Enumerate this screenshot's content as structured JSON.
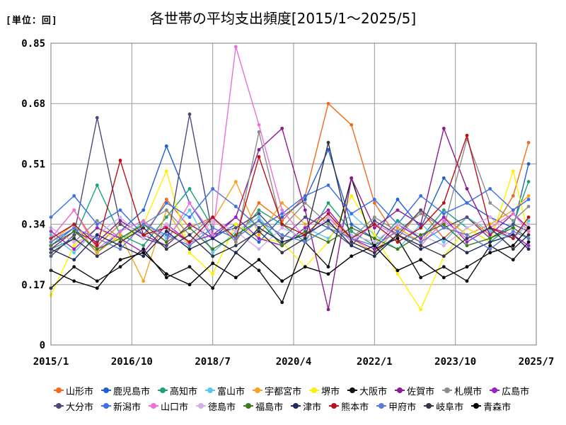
{
  "header": {
    "unit_label": "[単位：回]",
    "title": "各世帯の平均支出頻度[2015/1～2025/5]"
  },
  "chart_data": {
    "type": "line",
    "title": "各世帯の平均支出頻度[2015/1～2025/5]",
    "ylabel": "[単位：回]",
    "ylim": [
      0,
      0.85
    ],
    "yticks": [
      "0",
      "0.17",
      "0.34",
      "0.51",
      "0.68",
      "0.85"
    ],
    "xlim": [
      "2015-01",
      "2025-07"
    ],
    "xticks": [
      "2015/1",
      "2016/10",
      "2018/7",
      "2020/4",
      "2022/1",
      "2023/10",
      "2025/7"
    ],
    "grid": true,
    "legend": "bottom",
    "x": [
      "2015-01",
      "2015-07",
      "2016-01",
      "2016-07",
      "2017-01",
      "2017-07",
      "2018-01",
      "2018-07",
      "2019-01",
      "2019-07",
      "2020-01",
      "2020-07",
      "2021-01",
      "2021-07",
      "2022-01",
      "2022-07",
      "2023-01",
      "2023-07",
      "2024-01",
      "2024-07",
      "2025-01",
      "2025-05"
    ],
    "series": [
      {
        "name": "山形市",
        "color": "#f26a1b",
        "values": [
          0.3,
          0.38,
          0.28,
          0.34,
          0.3,
          0.41,
          0.33,
          0.36,
          0.29,
          0.4,
          0.35,
          0.42,
          0.68,
          0.62,
          0.4,
          0.3,
          0.38,
          0.3,
          0.36,
          0.31,
          0.42,
          0.57
        ]
      },
      {
        "name": "鹿児島市",
        "color": "#1f5fd6",
        "values": [
          0.28,
          0.33,
          0.26,
          0.32,
          0.38,
          0.56,
          0.4,
          0.3,
          0.34,
          0.29,
          0.36,
          0.41,
          0.55,
          0.34,
          0.3,
          0.41,
          0.33,
          0.47,
          0.4,
          0.36,
          0.33,
          0.51
        ]
      },
      {
        "name": "高知市",
        "color": "#1aa179",
        "values": [
          0.27,
          0.3,
          0.45,
          0.31,
          0.28,
          0.36,
          0.44,
          0.33,
          0.3,
          0.38,
          0.34,
          0.29,
          0.4,
          0.32,
          0.28,
          0.35,
          0.3,
          0.38,
          0.33,
          0.29,
          0.34,
          0.46
        ]
      },
      {
        "name": "富山市",
        "color": "#5bc8ee",
        "values": [
          0.31,
          0.26,
          0.33,
          0.29,
          0.35,
          0.3,
          0.38,
          0.26,
          0.32,
          0.36,
          0.28,
          0.33,
          0.3,
          0.37,
          0.31,
          0.27,
          0.34,
          0.29,
          0.36,
          0.32,
          0.3,
          0.35
        ]
      },
      {
        "name": "宇都宮市",
        "color": "#f5a41c",
        "values": [
          0.29,
          0.34,
          0.26,
          0.31,
          0.18,
          0.38,
          0.28,
          0.35,
          0.46,
          0.31,
          0.4,
          0.34,
          0.36,
          0.3,
          0.26,
          0.33,
          0.29,
          0.36,
          0.31,
          0.34,
          0.38,
          0.42
        ]
      },
      {
        "name": "堺市",
        "color": "#fff200",
        "values": [
          0.14,
          0.28,
          0.33,
          0.29,
          0.34,
          0.49,
          0.26,
          0.2,
          0.34,
          0.3,
          0.29,
          0.22,
          0.29,
          0.42,
          0.31,
          0.2,
          0.1,
          0.25,
          0.33,
          0.29,
          0.49,
          0.31
        ]
      },
      {
        "name": "大阪市",
        "color": "#111111",
        "values": [
          0.16,
          0.22,
          0.18,
          0.22,
          0.27,
          0.19,
          0.22,
          0.16,
          0.26,
          0.21,
          0.12,
          0.29,
          0.22,
          0.47,
          0.27,
          0.3,
          0.19,
          0.22,
          0.18,
          0.28,
          0.24,
          0.29
        ]
      },
      {
        "name": "佐賀市",
        "color": "#8d1a93",
        "values": [
          0.27,
          0.32,
          0.29,
          0.35,
          0.31,
          0.28,
          0.34,
          0.3,
          0.36,
          0.55,
          0.61,
          0.38,
          0.1,
          0.47,
          0.33,
          0.38,
          0.34,
          0.61,
          0.44,
          0.31,
          0.37,
          0.33
        ]
      },
      {
        "name": "札幌市",
        "color": "#8c8c8c",
        "values": [
          0.33,
          0.29,
          0.35,
          0.3,
          0.34,
          0.38,
          0.31,
          0.36,
          0.29,
          0.6,
          0.33,
          0.4,
          0.34,
          0.3,
          0.36,
          0.32,
          0.37,
          0.33,
          0.58,
          0.4,
          0.35,
          0.39
        ]
      },
      {
        "name": "広島市",
        "color": "#9a1fc7",
        "values": [
          0.32,
          0.27,
          0.33,
          0.3,
          0.26,
          0.34,
          0.29,
          0.31,
          0.36,
          0.3,
          0.28,
          0.33,
          0.38,
          0.3,
          0.27,
          0.34,
          0.3,
          0.36,
          0.29,
          0.33,
          0.31,
          0.28
        ]
      },
      {
        "name": "大分市",
        "color": "#4a4a7a",
        "values": [
          0.25,
          0.31,
          0.64,
          0.34,
          0.3,
          0.28,
          0.65,
          0.31,
          0.33,
          0.37,
          0.3,
          0.36,
          0.33,
          0.28,
          0.35,
          0.31,
          0.38,
          0.33,
          0.36,
          0.3,
          0.34,
          0.32
        ]
      },
      {
        "name": "新潟市",
        "color": "#3b6ee8",
        "values": [
          0.36,
          0.42,
          0.34,
          0.38,
          0.31,
          0.4,
          0.36,
          0.44,
          0.39,
          0.33,
          0.37,
          0.42,
          0.45,
          0.37,
          0.41,
          0.34,
          0.42,
          0.37,
          0.4,
          0.44,
          0.38,
          0.41
        ]
      },
      {
        "name": "山口市",
        "color": "#ee6fd8",
        "values": [
          0.3,
          0.38,
          0.27,
          0.32,
          0.35,
          0.29,
          0.4,
          0.31,
          0.84,
          0.62,
          0.38,
          0.3,
          0.36,
          0.29,
          0.34,
          0.31,
          0.28,
          0.35,
          0.3,
          0.33,
          0.37,
          0.32
        ]
      },
      {
        "name": "徳島市",
        "color": "#d4b0e8",
        "values": [
          0.33,
          0.29,
          0.31,
          0.36,
          0.3,
          0.34,
          0.28,
          0.35,
          0.32,
          0.27,
          0.33,
          0.3,
          0.36,
          0.31,
          0.29,
          0.34,
          0.31,
          0.28,
          0.33,
          0.36,
          0.3,
          0.34
        ]
      },
      {
        "name": "福島市",
        "color": "#3c7a1a",
        "values": [
          0.28,
          0.32,
          0.27,
          0.3,
          0.34,
          0.29,
          0.33,
          0.27,
          0.31,
          0.35,
          0.28,
          0.32,
          0.29,
          0.33,
          0.3,
          0.27,
          0.31,
          0.34,
          0.28,
          0.3,
          0.33,
          0.3
        ]
      },
      {
        "name": "津市",
        "color": "#1b2a5c",
        "values": [
          0.27,
          0.24,
          0.31,
          0.28,
          0.25,
          0.32,
          0.27,
          0.3,
          0.26,
          0.33,
          0.29,
          0.31,
          0.35,
          0.28,
          0.25,
          0.31,
          0.27,
          0.3,
          0.26,
          0.29,
          0.31,
          0.27
        ]
      },
      {
        "name": "熊本市",
        "color": "#b5121b",
        "values": [
          0.3,
          0.34,
          0.28,
          0.52,
          0.31,
          0.33,
          0.29,
          0.36,
          0.3,
          0.53,
          0.34,
          0.31,
          0.37,
          0.3,
          0.34,
          0.29,
          0.33,
          0.4,
          0.59,
          0.33,
          0.3,
          0.36
        ]
      },
      {
        "name": "甲府市",
        "color": "#5a7bd6",
        "values": [
          0.29,
          0.33,
          0.3,
          0.27,
          0.34,
          0.31,
          0.28,
          0.33,
          0.3,
          0.35,
          0.31,
          0.29,
          0.33,
          0.3,
          0.28,
          0.32,
          0.29,
          0.33,
          0.31,
          0.27,
          0.32,
          0.3
        ]
      },
      {
        "name": "岐阜市",
        "color": "#333344",
        "values": [
          0.26,
          0.3,
          0.25,
          0.29,
          0.33,
          0.27,
          0.31,
          0.25,
          0.28,
          0.32,
          0.26,
          0.3,
          0.57,
          0.29,
          0.26,
          0.31,
          0.28,
          0.25,
          0.3,
          0.33,
          0.27,
          0.31
        ]
      },
      {
        "name": "青森市",
        "color": "#000000",
        "values": [
          0.21,
          0.18,
          0.16,
          0.24,
          0.26,
          0.2,
          0.17,
          0.23,
          0.19,
          0.24,
          0.18,
          0.22,
          0.2,
          0.25,
          0.28,
          0.21,
          0.24,
          0.19,
          0.22,
          0.26,
          0.28,
          0.33
        ]
      }
    ]
  }
}
